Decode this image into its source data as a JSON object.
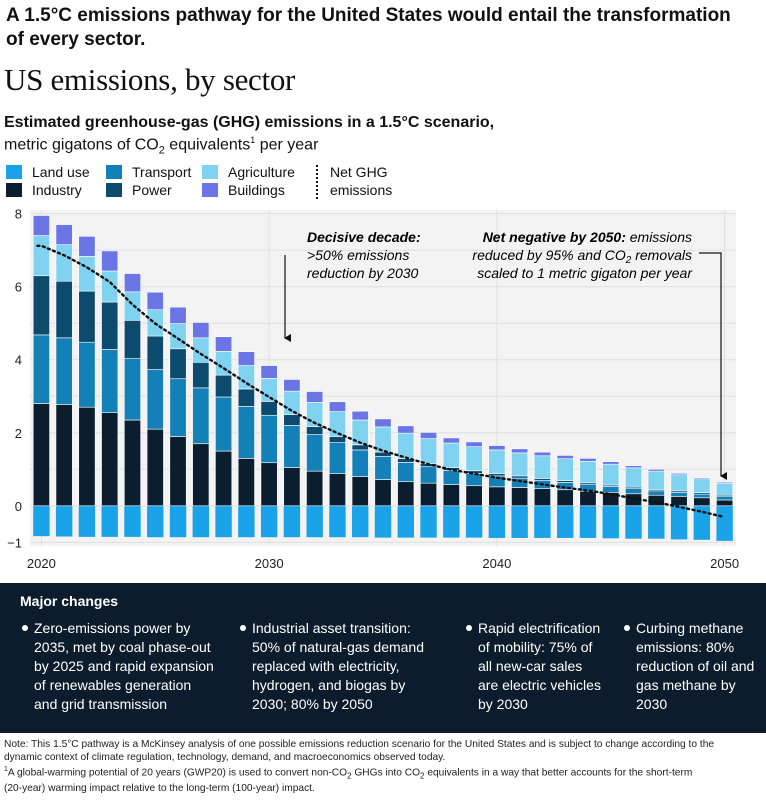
{
  "headline": "A 1.5°C emissions pathway for the United States would entail the transformation of every sector.",
  "chart_data": {
    "type": "bar",
    "title": "US emissions, by sector",
    "subtitle": "Estimated greenhouse-gas (GHG) emissions in a 1.5°C scenario,",
    "subtitle_unit_pre": "metric gigatons of CO",
    "subtitle_unit_sub": "2",
    "subtitle_unit_mid": " equivalents",
    "subtitle_unit_sup": "1",
    "subtitle_unit_post": " per year",
    "x": [
      2020,
      2021,
      2022,
      2023,
      2024,
      2025,
      2026,
      2027,
      2028,
      2029,
      2030,
      2031,
      2032,
      2033,
      2034,
      2035,
      2036,
      2037,
      2038,
      2039,
      2040,
      2041,
      2042,
      2043,
      2044,
      2045,
      2046,
      2047,
      2048,
      2049,
      2050
    ],
    "x_ticks": [
      2020,
      2030,
      2040,
      2050
    ],
    "y_ticks": [
      -1,
      0,
      2,
      4,
      6,
      8
    ],
    "ylim": [
      -1.1,
      8.1
    ],
    "stacked": true,
    "grid": true,
    "legend_position": "top-left",
    "series": [
      {
        "name": "Land use",
        "color": "#1aa3e8",
        "values": [
          -0.83,
          -0.84,
          -0.85,
          -0.85,
          -0.85,
          -0.86,
          -0.86,
          -0.86,
          -0.86,
          -0.86,
          -0.86,
          -0.86,
          -0.86,
          -0.86,
          -0.86,
          -0.87,
          -0.87,
          -0.87,
          -0.87,
          -0.87,
          -0.88,
          -0.88,
          -0.88,
          -0.88,
          -0.88,
          -0.89,
          -0.9,
          -0.9,
          -0.92,
          -0.93,
          -0.96
        ]
      },
      {
        "name": "Industry",
        "color": "#0b1e30",
        "values": [
          2.8,
          2.77,
          2.7,
          2.55,
          2.35,
          2.1,
          1.9,
          1.7,
          1.5,
          1.3,
          1.18,
          1.05,
          0.95,
          0.88,
          0.8,
          0.72,
          0.66,
          0.62,
          0.58,
          0.55,
          0.52,
          0.5,
          0.47,
          0.44,
          0.4,
          0.37,
          0.33,
          0.29,
          0.26,
          0.22,
          0.16
        ]
      },
      {
        "name": "Transport",
        "color": "#1480b8",
        "values": [
          1.88,
          1.83,
          1.78,
          1.73,
          1.68,
          1.63,
          1.58,
          1.53,
          1.48,
          1.42,
          1.3,
          1.15,
          1.0,
          0.85,
          0.73,
          0.63,
          0.53,
          0.45,
          0.39,
          0.34,
          0.3,
          0.26,
          0.23,
          0.2,
          0.18,
          0.16,
          0.14,
          0.12,
          0.11,
          0.1,
          0.09
        ]
      },
      {
        "name": "Power",
        "color": "#0c4a6e",
        "values": [
          1.62,
          1.55,
          1.4,
          1.3,
          1.05,
          0.92,
          0.82,
          0.7,
          0.6,
          0.48,
          0.38,
          0.3,
          0.22,
          0.17,
          0.14,
          0.12,
          0.1,
          0.09,
          0.08,
          0.07,
          0.06,
          0.06,
          0.05,
          0.05,
          0.05,
          0.04,
          0.04,
          0.04,
          0.04,
          0.04,
          0.04
        ]
      },
      {
        "name": "Agriculture",
        "color": "#7fd3f0",
        "values": [
          1.1,
          1.0,
          0.95,
          0.85,
          0.78,
          0.72,
          0.69,
          0.67,
          0.65,
          0.64,
          0.63,
          0.64,
          0.66,
          0.68,
          0.68,
          0.69,
          0.7,
          0.68,
          0.67,
          0.66,
          0.65,
          0.63,
          0.62,
          0.6,
          0.59,
          0.57,
          0.53,
          0.5,
          0.44,
          0.38,
          0.33
        ]
      },
      {
        "name": "Buildings",
        "color": "#6b75e6",
        "values": [
          0.55,
          0.55,
          0.55,
          0.55,
          0.5,
          0.48,
          0.45,
          0.42,
          0.4,
          0.38,
          0.35,
          0.32,
          0.3,
          0.27,
          0.24,
          0.22,
          0.2,
          0.17,
          0.14,
          0.13,
          0.12,
          0.11,
          0.1,
          0.09,
          0.08,
          0.07,
          0.06,
          0.05,
          0.04,
          0.03,
          0.03
        ]
      }
    ],
    "net_ghg": {
      "name": "Net GHG emissions",
      "values": [
        7.12,
        6.86,
        6.53,
        6.13,
        5.51,
        4.99,
        4.58,
        4.16,
        3.77,
        3.36,
        2.98,
        2.6,
        2.27,
        1.99,
        1.73,
        1.51,
        1.32,
        1.14,
        0.99,
        0.88,
        0.77,
        0.68,
        0.59,
        0.5,
        0.42,
        0.32,
        0.2,
        0.1,
        -0.03,
        -0.16,
        -0.31
      ]
    },
    "annotations": [
      {
        "bold": "Decisive decade:",
        "lines": [
          ">50% emissions",
          "reduction by 2030"
        ]
      },
      {
        "bold": "Net negative by 2050:",
        "rest": " emissions",
        "lines": [
          "reduced by 95% and CO",
          " removals",
          "scaled to 1 metric gigaton per year"
        ],
        "sub": "2"
      }
    ]
  },
  "legend_labels": {
    "net_line1": "Net GHG",
    "net_line2": "emissions"
  },
  "major_changes": {
    "heading": "Major changes",
    "items": [
      {
        "lines": [
          "Zero-emissions power by",
          "2035, met by coal phase-out",
          "by 2025 and rapid expansion",
          "of renewables generation",
          "and grid transmission"
        ]
      },
      {
        "lines": [
          "Industrial asset transition:",
          "50% of natural-gas demand",
          "replaced with electricity,",
          "hydrogen, and biogas by",
          "2030; 80% by 2050"
        ]
      },
      {
        "lines": [
          "Rapid electrification",
          "of mobility: 75% of",
          "all new-car sales",
          "are electric vehicles",
          "by 2030"
        ]
      },
      {
        "lines": [
          "Curbing methane",
          "emissions: 80%",
          "reduction of oil and",
          "gas methane by",
          "2030"
        ]
      }
    ]
  },
  "notes": {
    "note_line1": "Note: This 1.5°C pathway is a McKinsey analysis of one possible emissions reduction scenario for the United States and is subject to change according to the",
    "note_line2": "dynamic context of climate regulation, technology, demand, and macroeconomics observed today.",
    "fn_sup": "1",
    "fn_a": "A global-warming potential of 20 years (GWP20) is used to convert non-CO",
    "fn_b": " GHGs into CO",
    "fn_c": " equivalents in a way that better accounts for the short-term",
    "fn_sub": "2",
    "fn_line2": "(20-year) warming impact relative to the long-term (100-year) impact."
  }
}
